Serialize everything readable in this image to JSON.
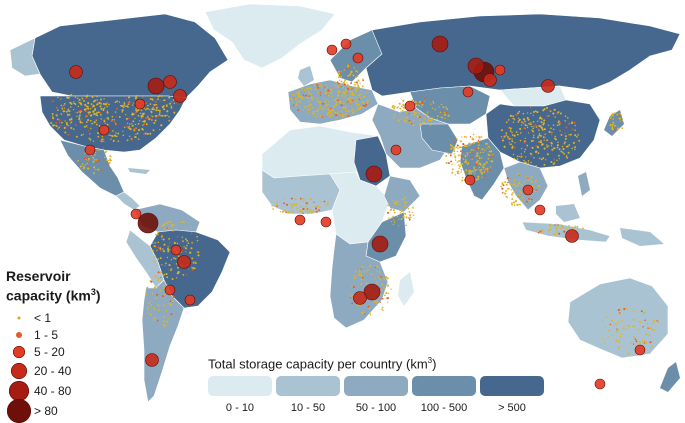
{
  "reservoir_legend": {
    "title_line1": "Reservoir",
    "title_line2": "capacity (km",
    "title_sup": "3",
    "title_end": ")",
    "items": [
      {
        "label": "< 1",
        "color": "#e6a21f"
      },
      {
        "label": "1 - 5",
        "color": "#e8582b"
      },
      {
        "label": "5 - 20",
        "color": "#e33a24"
      },
      {
        "label": "20 - 40",
        "color": "#c62a1a"
      },
      {
        "label": "40 - 80",
        "color": "#a51c12"
      },
      {
        "label": "> 80",
        "color": "#6e0f09"
      }
    ]
  },
  "storage_legend": {
    "title": "Total storage capacity per country (km",
    "title_sup": "3",
    "title_end": ")",
    "classes": [
      {
        "label": "0 - 10",
        "color": "#dcebf0"
      },
      {
        "label": "10 - 50",
        "color": "#a9c3d3"
      },
      {
        "label": "50 - 100",
        "color": "#8eaac0"
      },
      {
        "label": "100 - 500",
        "color": "#6b8eab"
      },
      {
        "label": "> 500",
        "color": "#47688e"
      }
    ]
  },
  "colors": {
    "ocean": "#ffffff",
    "land_low": "#dcebf0",
    "land_mid": "#a9c3d3",
    "land_high": "#47688e",
    "small_dots": "#e0b524",
    "reservoir_outline": "#5a0b05"
  }
}
